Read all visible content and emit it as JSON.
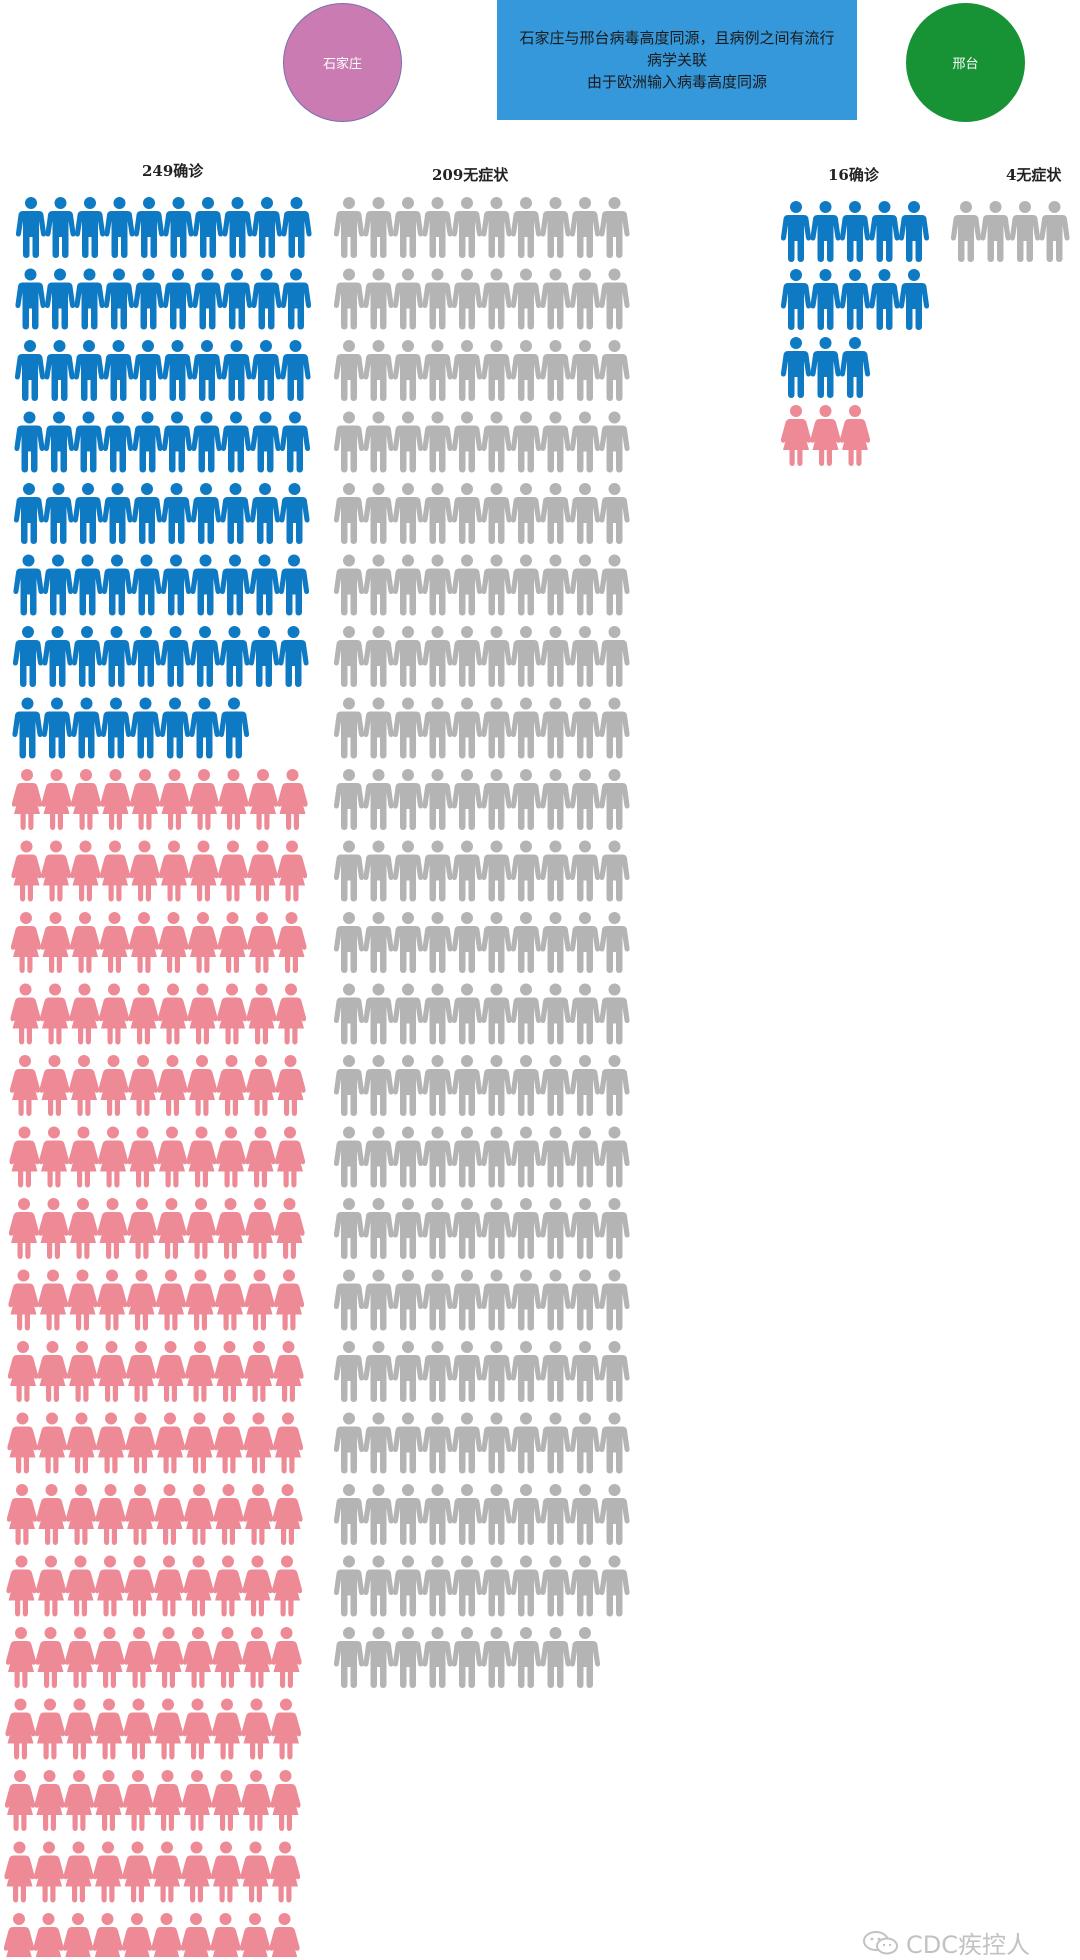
{
  "regions": [
    {
      "name": "石家庄",
      "color": "#c97bb2"
    },
    {
      "name": "邢台",
      "color": "#179234"
    }
  ],
  "note": {
    "line1": "石家庄与邢台病毒高度同源，且病例之间有流行",
    "line2": "病学关联",
    "line3": "由于欧洲输入病毒高度同源",
    "color": "#3498db"
  },
  "colors": {
    "male": "#0f7ac4",
    "female": "#ee8a96",
    "asymptomatic": "#b4b4b4"
  },
  "groups": [
    {
      "label": "249确诊",
      "region": "石家庄",
      "male": 78,
      "female": 171,
      "total": 249
    },
    {
      "label": "209无症状",
      "region": "石家庄",
      "total": 209
    },
    {
      "label": "16确诊",
      "region": "邢台",
      "male": 13,
      "female": 3,
      "total": 16
    },
    {
      "label": "4无症状",
      "region": "邢台",
      "total": 4
    }
  ],
  "watermark": "CDC疾控人"
}
